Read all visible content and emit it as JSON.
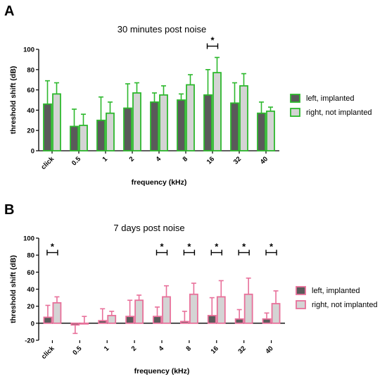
{
  "chart_data": [
    {
      "type": "bar",
      "panel_label": "A",
      "title": "30 minutes post noise",
      "xlabel": "frequency (kHz)",
      "ylabel": "threshold shift (dB)",
      "ylim": [
        0,
        100
      ],
      "yticks": [
        0,
        20,
        40,
        60,
        80,
        100
      ],
      "categories": [
        "click",
        "0.5",
        "1",
        "2",
        "4",
        "8",
        "16",
        "32",
        "40"
      ],
      "series": [
        {
          "name": "left, implanted",
          "fill": "#5a5a5a",
          "stroke": "#2db82d",
          "values": [
            46,
            24,
            30,
            42,
            48,
            50,
            55,
            47,
            37
          ],
          "errors": [
            23,
            17,
            23,
            24,
            9,
            6,
            25,
            20,
            11
          ]
        },
        {
          "name": "right, not implanted",
          "fill": "#d4d4d4",
          "stroke": "#2db82d",
          "values": [
            56,
            25,
            37,
            57,
            55,
            65,
            77,
            64,
            39
          ],
          "errors": [
            11,
            11,
            11,
            10,
            9,
            10,
            15,
            12,
            4
          ]
        }
      ],
      "error_color": "#2db82d",
      "significance": [
        {
          "category": "16",
          "label": "*"
        }
      ],
      "legend_position": "right"
    },
    {
      "type": "bar",
      "panel_label": "B",
      "title": "7 days post noise",
      "xlabel": "frequency (kHz)",
      "ylabel": "threshold shift (dB)",
      "ylim": [
        -20,
        100
      ],
      "yticks": [
        -20,
        0,
        20,
        40,
        60,
        80,
        100
      ],
      "categories": [
        "click",
        "0.5",
        "1",
        "2",
        "4",
        "8",
        "16",
        "32",
        "40"
      ],
      "series": [
        {
          "name": "left, implanted",
          "fill": "#5a5a5a",
          "stroke": "#e8709a",
          "values": [
            7,
            -2,
            3,
            8,
            8,
            2,
            9,
            5,
            5
          ],
          "errors": [
            14,
            10,
            14,
            19,
            11,
            12,
            21,
            11,
            7
          ]
        },
        {
          "name": "right, not implanted",
          "fill": "#d4d4d4",
          "stroke": "#e8709a",
          "values": [
            24,
            0,
            9,
            27,
            31,
            34,
            31,
            34,
            23
          ],
          "errors": [
            7,
            8,
            5,
            6,
            13,
            13,
            19,
            19,
            15
          ]
        }
      ],
      "error_color": "#e8709a",
      "significance": [
        {
          "category": "click",
          "label": "*"
        },
        {
          "category": "4",
          "label": "*"
        },
        {
          "category": "8",
          "label": "*"
        },
        {
          "category": "16",
          "label": "*"
        },
        {
          "category": "32",
          "label": "*"
        },
        {
          "category": "40",
          "label": "*"
        }
      ],
      "legend_position": "right"
    }
  ]
}
